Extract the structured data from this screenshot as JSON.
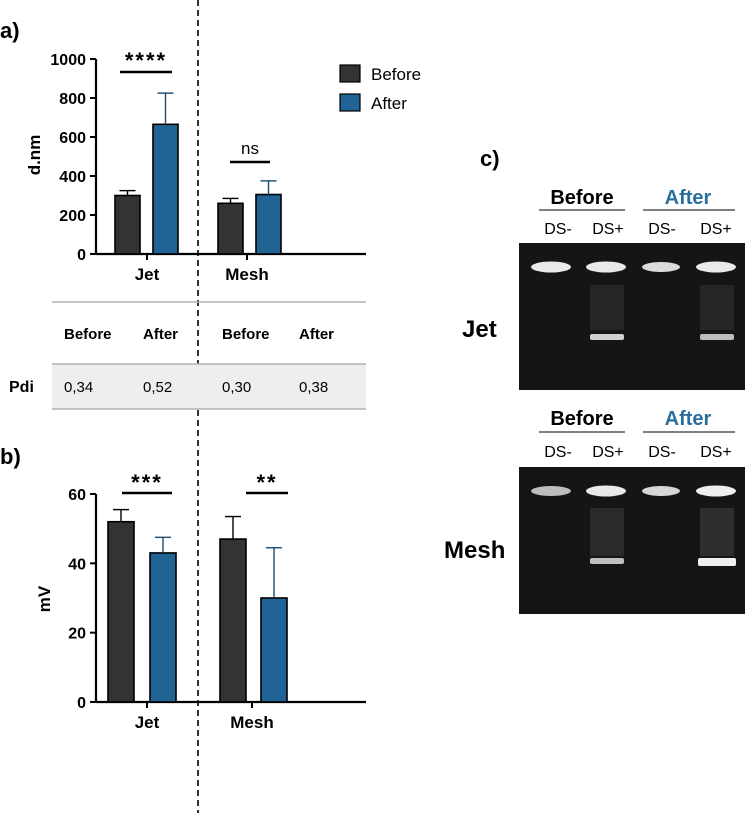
{
  "colors": {
    "before": "#333333",
    "after": "#1f6494",
    "after_text": "#2a6f9e",
    "table_band": "#eeeeee",
    "gel_bg": "#151515"
  },
  "panels": {
    "a": "a)",
    "b": "b)",
    "c": "c)"
  },
  "legend": {
    "before": "Before",
    "after": "After"
  },
  "chart_data": [
    {
      "type": "bar",
      "panel": "a",
      "ylabel": "d.nm",
      "ylim": [
        0,
        1000
      ],
      "yticks": [
        "0",
        "200",
        "400",
        "600",
        "800",
        "1000"
      ],
      "categories": [
        "Jet",
        "Mesh"
      ],
      "series": [
        {
          "name": "Before",
          "values": [
            300,
            260
          ],
          "errors": [
            25,
            25
          ]
        },
        {
          "name": "After",
          "values": [
            665,
            305
          ],
          "errors": [
            160,
            70
          ]
        }
      ],
      "significance": [
        "****",
        "ns"
      ]
    },
    {
      "type": "bar",
      "panel": "b",
      "ylabel": "mV",
      "ylim": [
        0,
        60
      ],
      "yticks": [
        "0",
        "20",
        "40",
        "60"
      ],
      "categories": [
        "Jet",
        "Mesh"
      ],
      "series": [
        {
          "name": "Before",
          "values": [
            52,
            47
          ],
          "errors": [
            3.5,
            6.5
          ]
        },
        {
          "name": "After",
          "values": [
            43,
            30
          ],
          "errors": [
            4.5,
            14.5
          ]
        }
      ],
      "significance": [
        "***",
        "**"
      ]
    },
    {
      "type": "table",
      "panel": "a",
      "row_label": "Pdi",
      "headers": [
        "Before",
        "After",
        "Before",
        "After"
      ],
      "values": [
        "0,34",
        "0,52",
        "0,30",
        "0,38"
      ]
    }
  ],
  "gel": {
    "headers": {
      "before": "Before",
      "after": "After"
    },
    "lanes": [
      "DS-",
      "DS+",
      "DS-",
      "DS+"
    ],
    "rows": [
      "Jet",
      "Mesh"
    ]
  }
}
